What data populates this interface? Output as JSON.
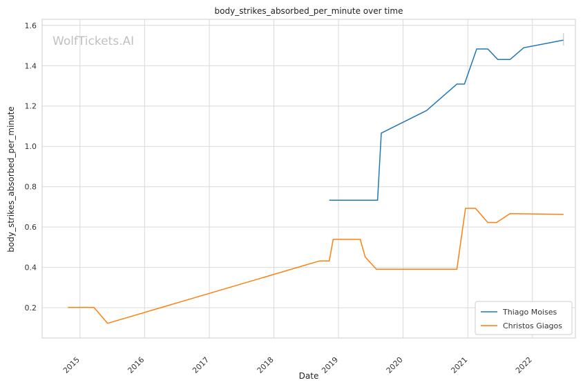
{
  "chart_data": {
    "type": "line",
    "title": "body_strikes_absorbed_per_minute over time",
    "xlabel": "Date",
    "ylabel": "body_strikes_absorbed_per_minute",
    "watermark": "WolfTickets.AI",
    "x_ticks": [
      "2015",
      "2016",
      "2017",
      "2018",
      "2019",
      "2020",
      "2021",
      "2022"
    ],
    "y_ticks": [
      "0.2",
      "0.4",
      "0.6",
      "0.8",
      "1.0",
      "1.2",
      "1.4",
      "1.6"
    ],
    "xlim": [
      "2014-06-01",
      "2022-09-01"
    ],
    "ylim": [
      0.05,
      1.63
    ],
    "grid": true,
    "legend_position": "bottom-right",
    "series": [
      {
        "name": "Thiago Moises",
        "color": "#1f77b4",
        "points": [
          [
            "2018-11-10",
            0.733
          ],
          [
            "2019-08-10",
            0.733
          ],
          [
            "2019-08-31",
            1.066
          ],
          [
            "2020-05-13",
            1.178
          ],
          [
            "2020-10-31",
            1.309
          ],
          [
            "2020-12-13",
            1.309
          ],
          [
            "2021-02-20",
            1.483
          ],
          [
            "2021-04-24",
            1.483
          ],
          [
            "2021-06-19",
            1.431
          ],
          [
            "2021-08-28",
            1.431
          ],
          [
            "2021-11-13",
            1.489
          ],
          [
            "2022-06-26",
            1.527
          ]
        ]
      },
      {
        "name": "Christos Giagos",
        "color": "#ff7f0e",
        "points": [
          [
            "2014-10-25",
            0.202
          ],
          [
            "2015-03-21",
            0.202
          ],
          [
            "2015-06-06",
            0.123
          ],
          [
            "2018-09-15",
            0.432
          ],
          [
            "2018-11-10",
            0.432
          ],
          [
            "2018-12-02",
            0.539
          ],
          [
            "2019-05-04",
            0.539
          ],
          [
            "2019-06-01",
            0.452
          ],
          [
            "2019-08-03",
            0.391
          ],
          [
            "2020-10-31",
            0.391
          ],
          [
            "2020-12-19",
            0.693
          ],
          [
            "2021-02-13",
            0.693
          ],
          [
            "2021-04-24",
            0.623
          ],
          [
            "2021-06-12",
            0.623
          ],
          [
            "2021-08-28",
            0.667
          ],
          [
            "2022-06-26",
            0.663
          ]
        ]
      }
    ]
  }
}
